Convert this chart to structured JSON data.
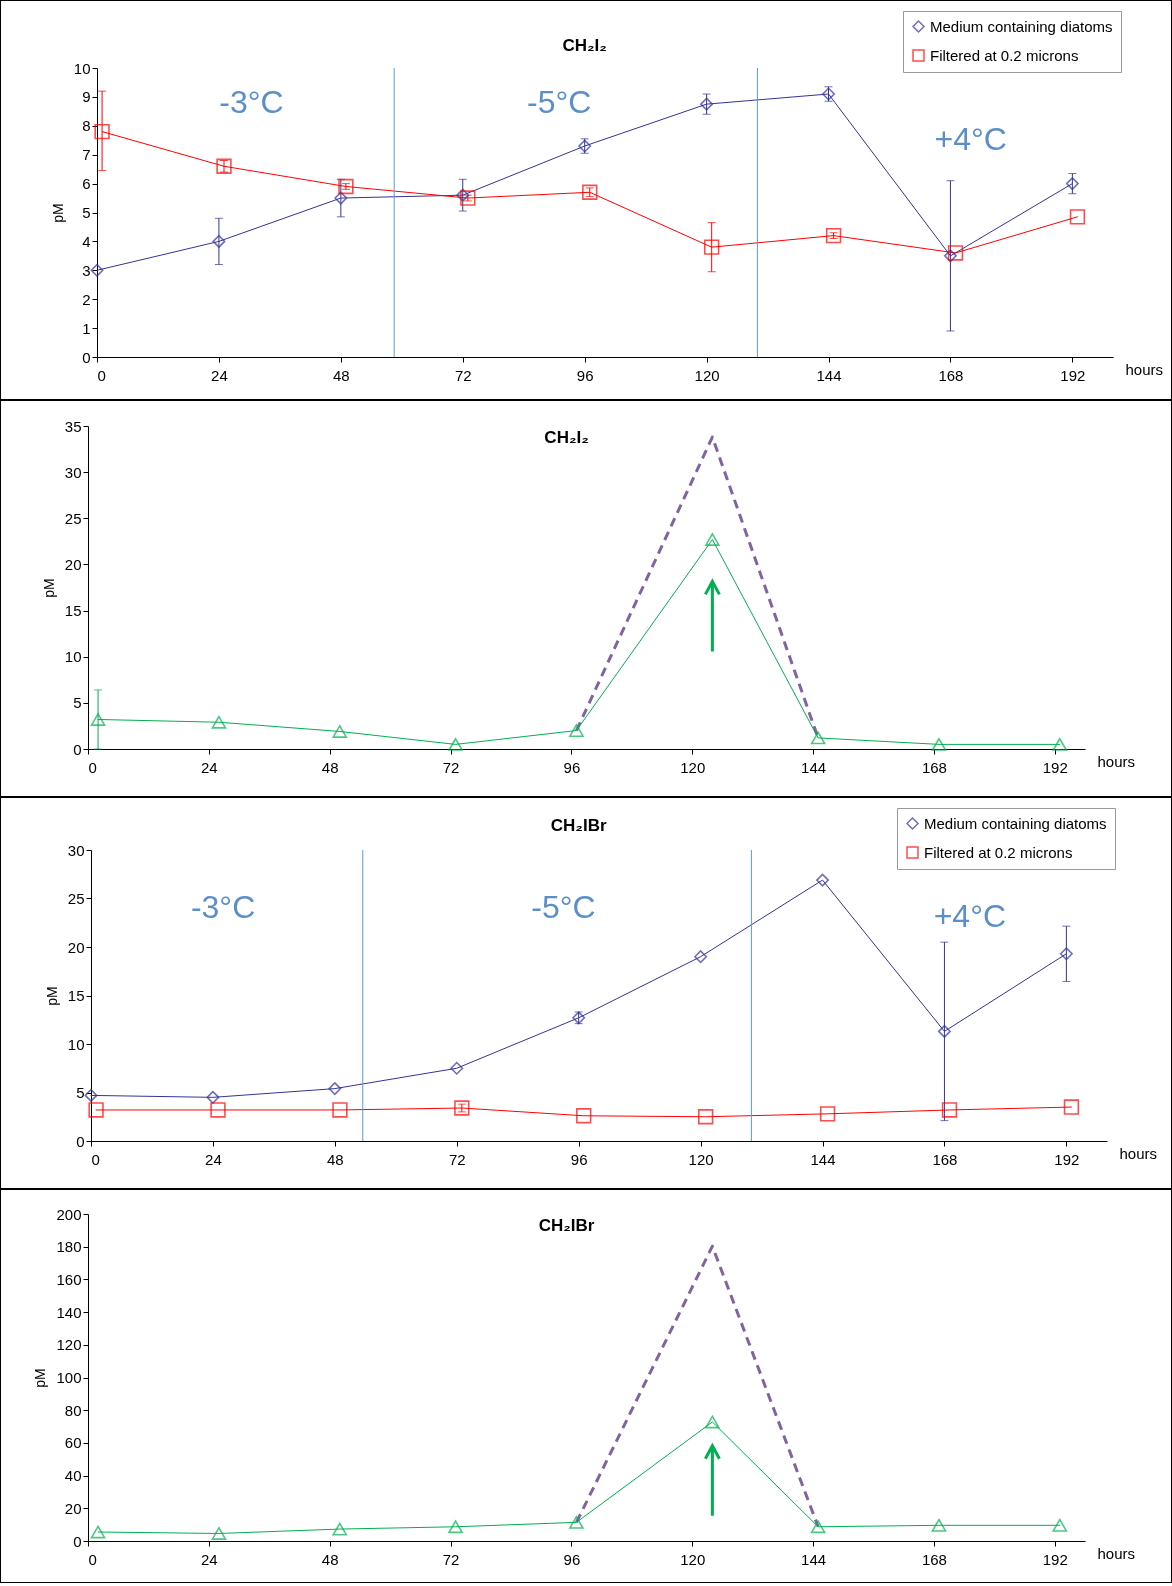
{
  "chart_data": [
    {
      "type": "line",
      "title": "CH₂I₂",
      "xlabel": "hours",
      "ylabel": "pM",
      "xlim": [
        0,
        200
      ],
      "xticks": [
        0,
        24,
        48,
        72,
        96,
        120,
        144,
        168,
        192
      ],
      "ylim": [
        0,
        10
      ],
      "yticks": [
        0,
        1,
        2,
        3,
        4,
        5,
        6,
        7,
        8,
        9,
        10
      ],
      "grid": false,
      "legend": "top right",
      "series": [
        {
          "name": "Medium containing diatoms",
          "color": "#333399",
          "marker": "diamond",
          "x": [
            0,
            24,
            48,
            72,
            96,
            120,
            144,
            168,
            192
          ],
          "values": [
            3.0,
            4.0,
            5.5,
            5.6,
            7.3,
            8.75,
            9.1,
            3.5,
            6.0
          ],
          "errors": [
            null,
            0.8,
            0.65,
            0.55,
            0.25,
            0.35,
            0.25,
            2.6,
            0.35
          ]
        },
        {
          "name": "Filtered at 0.2 microns",
          "color": "#ff0000",
          "marker": "square",
          "x": [
            1,
            25,
            49,
            73,
            97,
            121,
            145,
            169,
            193
          ],
          "values": [
            7.8,
            6.6,
            5.9,
            5.5,
            5.7,
            3.8,
            4.2,
            3.6,
            4.85
          ],
          "errors": [
            [
              6.45,
              9.2
            ],
            0.2,
            0.1,
            0.1,
            0.15,
            0.85,
            0.1,
            null,
            null
          ]
        }
      ],
      "ref_lines": [
        {
          "axis": "x",
          "value": 58.5,
          "color": "#5b9bd5"
        },
        {
          "axis": "x",
          "value": 130,
          "color": "#5b9bd5"
        }
      ],
      "annotations": [
        "-3°C",
        "-5°C",
        "+4°C"
      ]
    },
    {
      "type": "line",
      "title": "CH₂I₂",
      "xlabel": "hours",
      "ylabel": "pM",
      "xlim": [
        0,
        198
      ],
      "xticks": [
        0,
        24,
        48,
        72,
        96,
        120,
        144,
        168,
        192
      ],
      "ylim": [
        0,
        35
      ],
      "yticks": [
        0,
        5,
        10,
        15,
        20,
        25,
        30,
        35
      ],
      "grid": false,
      "series": [
        {
          "color": "#8064a2",
          "marker": "none",
          "line_style": "dashed",
          "x": [
            97,
            124,
            145
          ],
          "values": [
            2.0,
            33.8,
            1.2
          ]
        },
        {
          "color": "#00b050",
          "marker": "triangle",
          "x": [
            2,
            26,
            50,
            73,
            97,
            124,
            145,
            169,
            193
          ],
          "values": [
            3.2,
            2.9,
            1.9,
            0.5,
            2.0,
            22.7,
            1.2,
            0.5,
            0.5
          ],
          "errors": [
            3.2,
            null,
            null,
            null,
            null,
            null,
            null,
            null,
            null
          ]
        }
      ]
    },
    {
      "type": "line",
      "title": "CH₂IBr",
      "xlabel": "hours",
      "ylabel": "pM",
      "xlim": [
        0,
        200
      ],
      "xticks": [
        0,
        24,
        48,
        72,
        96,
        120,
        144,
        168,
        192
      ],
      "ylim": [
        0,
        30
      ],
      "yticks": [
        0,
        5,
        10,
        15,
        20,
        25,
        30
      ],
      "grid": false,
      "legend": "top right",
      "series": [
        {
          "name": "Medium containing diatoms",
          "color": "#333399",
          "marker": "diamond",
          "x": [
            0,
            24,
            48,
            72,
            96,
            120,
            144,
            168,
            192
          ],
          "values": [
            4.7,
            4.5,
            5.4,
            7.5,
            12.7,
            19.0,
            26.9,
            11.3,
            19.3
          ],
          "errors": [
            null,
            null,
            null,
            null,
            0.6,
            null,
            null,
            9.2,
            2.85
          ]
        },
        {
          "name": "Filtered at 0.2 microns",
          "color": "#ff0000",
          "marker": "square",
          "x": [
            1,
            25,
            49,
            73,
            97,
            121,
            145,
            169,
            193
          ],
          "values": [
            3.2,
            3.2,
            3.2,
            3.4,
            2.6,
            2.5,
            2.8,
            3.2,
            3.5
          ],
          "errors": [
            null,
            null,
            null,
            0.4,
            null,
            null,
            null,
            null,
            null
          ]
        }
      ],
      "ref_lines": [
        {
          "axis": "x",
          "value": 53.5,
          "color": "#5b9bd5"
        },
        {
          "axis": "x",
          "value": 130,
          "color": "#5b9bd5"
        }
      ],
      "annotations": [
        "-3°C",
        "-5°C",
        "+4°C"
      ]
    },
    {
      "type": "line",
      "title": "CH₂IBr",
      "xlabel": "hours",
      "ylabel": "pM",
      "xlim": [
        0,
        198
      ],
      "xticks": [
        0,
        24,
        48,
        72,
        96,
        120,
        144,
        168,
        192
      ],
      "ylim": [
        0,
        200
      ],
      "yticks": [
        0,
        20,
        40,
        60,
        80,
        100,
        120,
        140,
        160,
        180,
        200
      ],
      "grid": false,
      "series": [
        {
          "color": "#8064a2",
          "marker": "none",
          "line_style": "dashed",
          "x": [
            97,
            124,
            145
          ],
          "values": [
            11.4,
            180.3,
            8.7
          ]
        },
        {
          "color": "#00b050",
          "marker": "triangle",
          "x": [
            2,
            26,
            50,
            73,
            97,
            124,
            145,
            169,
            193
          ],
          "values": [
            5.5,
            4.6,
            7.3,
            8.7,
            11.4,
            72.8,
            8.7,
            9.6,
            9.6
          ]
        }
      ]
    }
  ]
}
